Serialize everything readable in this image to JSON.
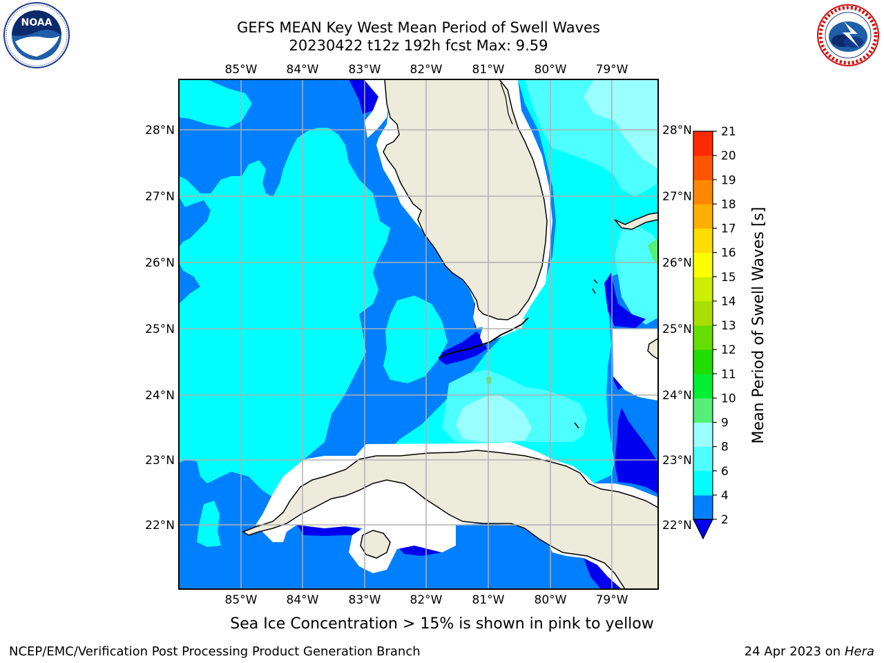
{
  "header": {
    "title_line1": "GEFS MEAN Key West Mean Period of Swell Waves",
    "title_line2": "20230422 t12z 192h fcst    Max: 9.59"
  },
  "logos": {
    "left": {
      "name": "NOAA",
      "ring_text": "NATIONAL OCEANIC AND ATMOSPHERIC ADMINISTRATION · U.S. DEPARTMENT OF COMMERCE"
    },
    "right": {
      "name": "NATIONAL WEATHER SERVICE"
    }
  },
  "map": {
    "lon_labels": [
      "85°W",
      "84°W",
      "83°W",
      "82°W",
      "81°W",
      "80°W",
      "79°W"
    ],
    "lat_labels": [
      "28°N",
      "27°N",
      "26°N",
      "25°N",
      "24°N",
      "23°N",
      "22°N"
    ],
    "extent": {
      "lon": [
        -86.0,
        -78.25
      ],
      "lat": [
        21.05,
        28.75
      ]
    },
    "grid": true,
    "colors": {
      "land": "#ecebdc",
      "lt2": "#0000ee",
      "b2_4": "#0080ff",
      "b4_6": "#00ffff",
      "b6_8": "#4dffff",
      "b8_9": "#99ffff",
      "b9_10": "#55ee77"
    }
  },
  "colorbar": {
    "label": "Mean Period of Swell Waves [s]",
    "ticks": [
      "2",
      "4",
      "6",
      "8",
      "9",
      "10",
      "11",
      "12",
      "13",
      "14",
      "15",
      "16",
      "17",
      "18",
      "19",
      "20",
      "21"
    ],
    "colors": [
      "#0080ff",
      "#00ffff",
      "#4dffff",
      "#99ffff",
      "#55ee77",
      "#00ee33",
      "#22dd00",
      "#66dd00",
      "#aadd00",
      "#ccee00",
      "#ffff00",
      "#ffdd00",
      "#ffb000",
      "#ff8800",
      "#ff5500",
      "#ff2a00"
    ],
    "under_color": "#0000ee"
  },
  "footer": {
    "caption": "Sea Ice Concentration > 15% is shown in pink to yellow",
    "left": "NCEP/EMC/Verification Post Processing Product Generation Branch",
    "right_date": "24 Apr 2023 on",
    "right_host": "Hera"
  }
}
